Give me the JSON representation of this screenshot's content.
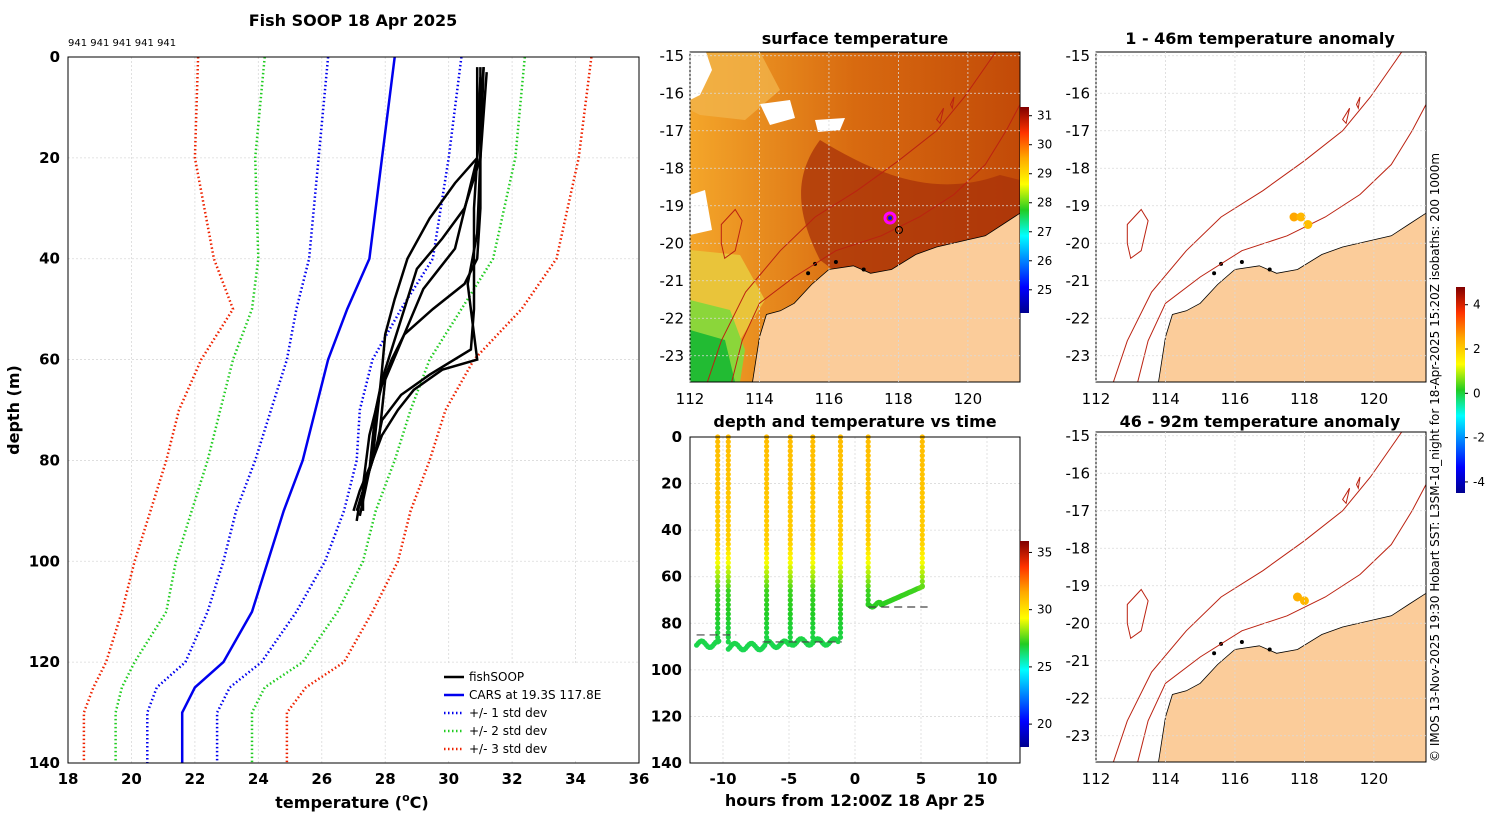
{
  "chart_data": [
    {
      "type": "line",
      "title": "Fish SOOP 18 Apr 2025",
      "annotation": "941 941 941 941 941",
      "xlabel": "temperature (",
      "xlabel_sup": "o",
      "xlabel_end": "C)",
      "ylabel": "depth (m)",
      "xlim": [
        18,
        36
      ],
      "ylim": [
        140,
        0
      ],
      "xticks": [
        "18",
        "20",
        "22",
        "24",
        "26",
        "28",
        "30",
        "32",
        "34",
        "36"
      ],
      "yticks": [
        "0",
        "20",
        "40",
        "60",
        "80",
        "100",
        "120",
        "140"
      ],
      "legend": [
        {
          "label": "fishSOOP",
          "color": "#000000",
          "style": "solid"
        },
        {
          "label": "CARS at 19.3S 117.8E",
          "color": "#0000ee",
          "style": "solid"
        },
        {
          "label": "+/- 1 std dev",
          "color": "#0000ee",
          "style": "dotted"
        },
        {
          "label": "+/- 2 std dev",
          "color": "#22cc22",
          "style": "dotted"
        },
        {
          "label": "+/- 3 std dev",
          "color": "#ee2200",
          "style": "dotted"
        }
      ],
      "cars_depth": [
        0,
        20,
        40,
        50,
        60,
        70,
        80,
        90,
        100,
        110,
        120,
        125,
        130,
        140
      ],
      "cars_mean": [
        28.3,
        27.9,
        27.5,
        26.8,
        26.2,
        25.8,
        25.4,
        24.8,
        24.3,
        23.8,
        22.9,
        22.0,
        21.6,
        21.6
      ],
      "cars_sd1": [
        30.4,
        30.0,
        29.5,
        28.5,
        27.6,
        27.2,
        27.1,
        26.7,
        26.1,
        25.2,
        24.1,
        23.1,
        22.7,
        22.7
      ],
      "cars_sd2": [
        32.4,
        32.1,
        31.4,
        30.4,
        29.4,
        28.8,
        28.3,
        27.7,
        27.3,
        26.5,
        25.4,
        24.2,
        23.8,
        23.8
      ],
      "cars_sd3": [
        34.5,
        34.1,
        33.4,
        32.3,
        30.8,
        29.9,
        29.4,
        28.8,
        28.4,
        27.6,
        26.7,
        25.5,
        24.9,
        24.9
      ],
      "cars_msd1": [
        26.2,
        25.9,
        25.6,
        25.2,
        24.9,
        24.4,
        23.9,
        23.3,
        22.9,
        22.4,
        21.7,
        20.8,
        20.5,
        20.5
      ],
      "cars_msd2": [
        24.2,
        23.9,
        24.0,
        23.8,
        23.2,
        22.8,
        22.4,
        21.9,
        21.4,
        21.1,
        20.1,
        19.7,
        19.5,
        19.5
      ],
      "cars_msd3": [
        22.1,
        22.0,
        22.6,
        23.2,
        22.2,
        21.5,
        21.1,
        20.6,
        20.1,
        19.7,
        19.2,
        18.8,
        18.5,
        18.5
      ],
      "fishsoop_profiles": [
        {
          "depth": [
            2,
            20,
            30,
            40,
            45,
            50,
            55,
            60,
            65,
            70,
            75,
            80,
            85,
            90
          ],
          "temp": [
            31.0,
            31.0,
            31.0,
            30.9,
            30.5,
            29.5,
            28.6,
            28.2,
            27.9,
            27.7,
            27.5,
            27.4,
            27.3,
            27.3
          ]
        },
        {
          "depth": [
            2,
            20,
            30,
            36,
            42,
            50,
            58,
            64,
            70,
            76,
            82,
            88,
            91
          ],
          "temp": [
            31.1,
            31.0,
            30.5,
            29.8,
            29.0,
            28.6,
            28.2,
            27.9,
            27.7,
            27.6,
            27.5,
            27.3,
            27.2
          ]
        },
        {
          "depth": [
            3,
            20,
            35,
            45,
            55,
            60,
            62,
            66,
            70,
            75,
            80,
            86,
            90
          ],
          "temp": [
            31.2,
            31.0,
            30.9,
            30.6,
            30.8,
            30.9,
            29.8,
            28.9,
            28.4,
            27.9,
            27.6,
            27.2,
            27.0
          ]
        },
        {
          "depth": [
            2,
            20,
            25,
            32,
            40,
            48,
            55,
            62,
            68,
            74,
            80,
            86,
            89
          ],
          "temp": [
            30.9,
            30.9,
            30.2,
            29.4,
            28.7,
            28.3,
            28.0,
            27.9,
            27.8,
            27.7,
            27.6,
            27.3,
            27.2
          ]
        },
        {
          "depth": [
            4,
            20,
            38,
            42,
            46,
            52,
            58,
            64,
            70,
            76,
            82,
            88,
            92
          ],
          "temp": [
            31.0,
            30.9,
            30.2,
            29.7,
            29.2,
            28.8,
            28.4,
            28.0,
            27.9,
            27.8,
            27.5,
            27.2,
            27.1
          ]
        },
        {
          "depth": [
            2,
            20,
            30,
            40,
            50,
            58,
            63,
            67,
            72,
            78,
            84,
            90
          ],
          "temp": [
            31.1,
            30.9,
            30.8,
            30.8,
            30.8,
            30.7,
            29.4,
            28.5,
            27.9,
            27.7,
            27.4,
            27.1
          ]
        }
      ]
    },
    {
      "type": "heatmap",
      "title": "surface temperature",
      "xticks": [
        "112",
        "114",
        "116",
        "118",
        "120"
      ],
      "yticks": [
        "-15",
        "-16",
        "-17",
        "-18",
        "-19",
        "-20",
        "-21",
        "-22",
        "-23"
      ],
      "xlim": [
        112,
        121.5
      ],
      "ylim": [
        -23.7,
        -14.9
      ],
      "colorbar_ticks": [
        "31",
        "30",
        "29",
        "28",
        "27",
        "26",
        "25"
      ],
      "colorbar_range": [
        24.2,
        31.3
      ],
      "marker": {
        "lon": 117.8,
        "lat": -19.3,
        "color": "#ff00ff"
      },
      "marker2": {
        "lon": 118.0,
        "lat": -19.6
      }
    },
    {
      "type": "scatter",
      "title": "depth and temperature vs time",
      "xlabel": "hours from 12:00Z 18 Apr 25",
      "xticks": [
        "-10",
        "-5",
        "0",
        "5",
        "10"
      ],
      "yticks": [
        "0",
        "20",
        "40",
        "60",
        "80",
        "100",
        "120",
        "140"
      ],
      "xlim": [
        -12.5,
        12.5
      ],
      "ylim": [
        140,
        0
      ],
      "colorbar_ticks": [
        "35",
        "30",
        "25",
        "20"
      ],
      "colorbar_range": [
        18,
        36
      ],
      "bottom_reference_lines": [
        {
          "x0": -12.0,
          "x1": -9.0,
          "depth": 85
        },
        {
          "x0": -7.0,
          "x1": -1.0,
          "depth": 88
        },
        {
          "x0": 1.0,
          "x1": 5.5,
          "depth": 73
        }
      ],
      "casts_hours": [
        -10.4,
        -9.6,
        -6.7,
        -4.9,
        -3.2,
        1.0,
        5.1
      ]
    },
    {
      "type": "heatmap",
      "title": "1 - 46m temperature anomaly",
      "xticks": [
        "112",
        "114",
        "116",
        "118",
        "120"
      ],
      "yticks": [
        "-15",
        "-16",
        "-17",
        "-18",
        "-19",
        "-20",
        "-21",
        "-22",
        "-23"
      ],
      "xlim": [
        112,
        121.5
      ],
      "ylim": [
        -23.7,
        -14.9
      ],
      "points": [
        {
          "lon": 117.7,
          "lat": -19.3,
          "anomaly": 2.5
        },
        {
          "lon": 117.9,
          "lat": -19.3,
          "anomaly": 2.3
        },
        {
          "lon": 118.1,
          "lat": -19.5,
          "anomaly": 2.2
        }
      ]
    },
    {
      "type": "heatmap",
      "title": "46 - 92m temperature anomaly",
      "xticks": [
        "112",
        "114",
        "116",
        "118",
        "120"
      ],
      "yticks": [
        "-15",
        "-16",
        "-17",
        "-18",
        "-19",
        "-20",
        "-21",
        "-22",
        "-23"
      ],
      "xlim": [
        112,
        121.5
      ],
      "ylim": [
        -23.7,
        -14.9
      ],
      "colorbar_ticks": [
        "4",
        "2",
        "0",
        "-2",
        "-4"
      ],
      "colorbar_range": [
        -4.5,
        4.8
      ],
      "points": [
        {
          "lon": 117.8,
          "lat": -19.3,
          "anomaly": 2.4
        },
        {
          "lon": 118.0,
          "lat": -19.4,
          "anomaly": 2.3
        }
      ]
    }
  ],
  "side_note": "© IMOS 13-Nov-2025 19:30 Hobart SST: L3SM-1d_night for 18-Apr-2025 15:20Z isobaths: 200  1000m",
  "colors": {
    "land": "#fbcc9a",
    "isobath": "#bb2211"
  }
}
